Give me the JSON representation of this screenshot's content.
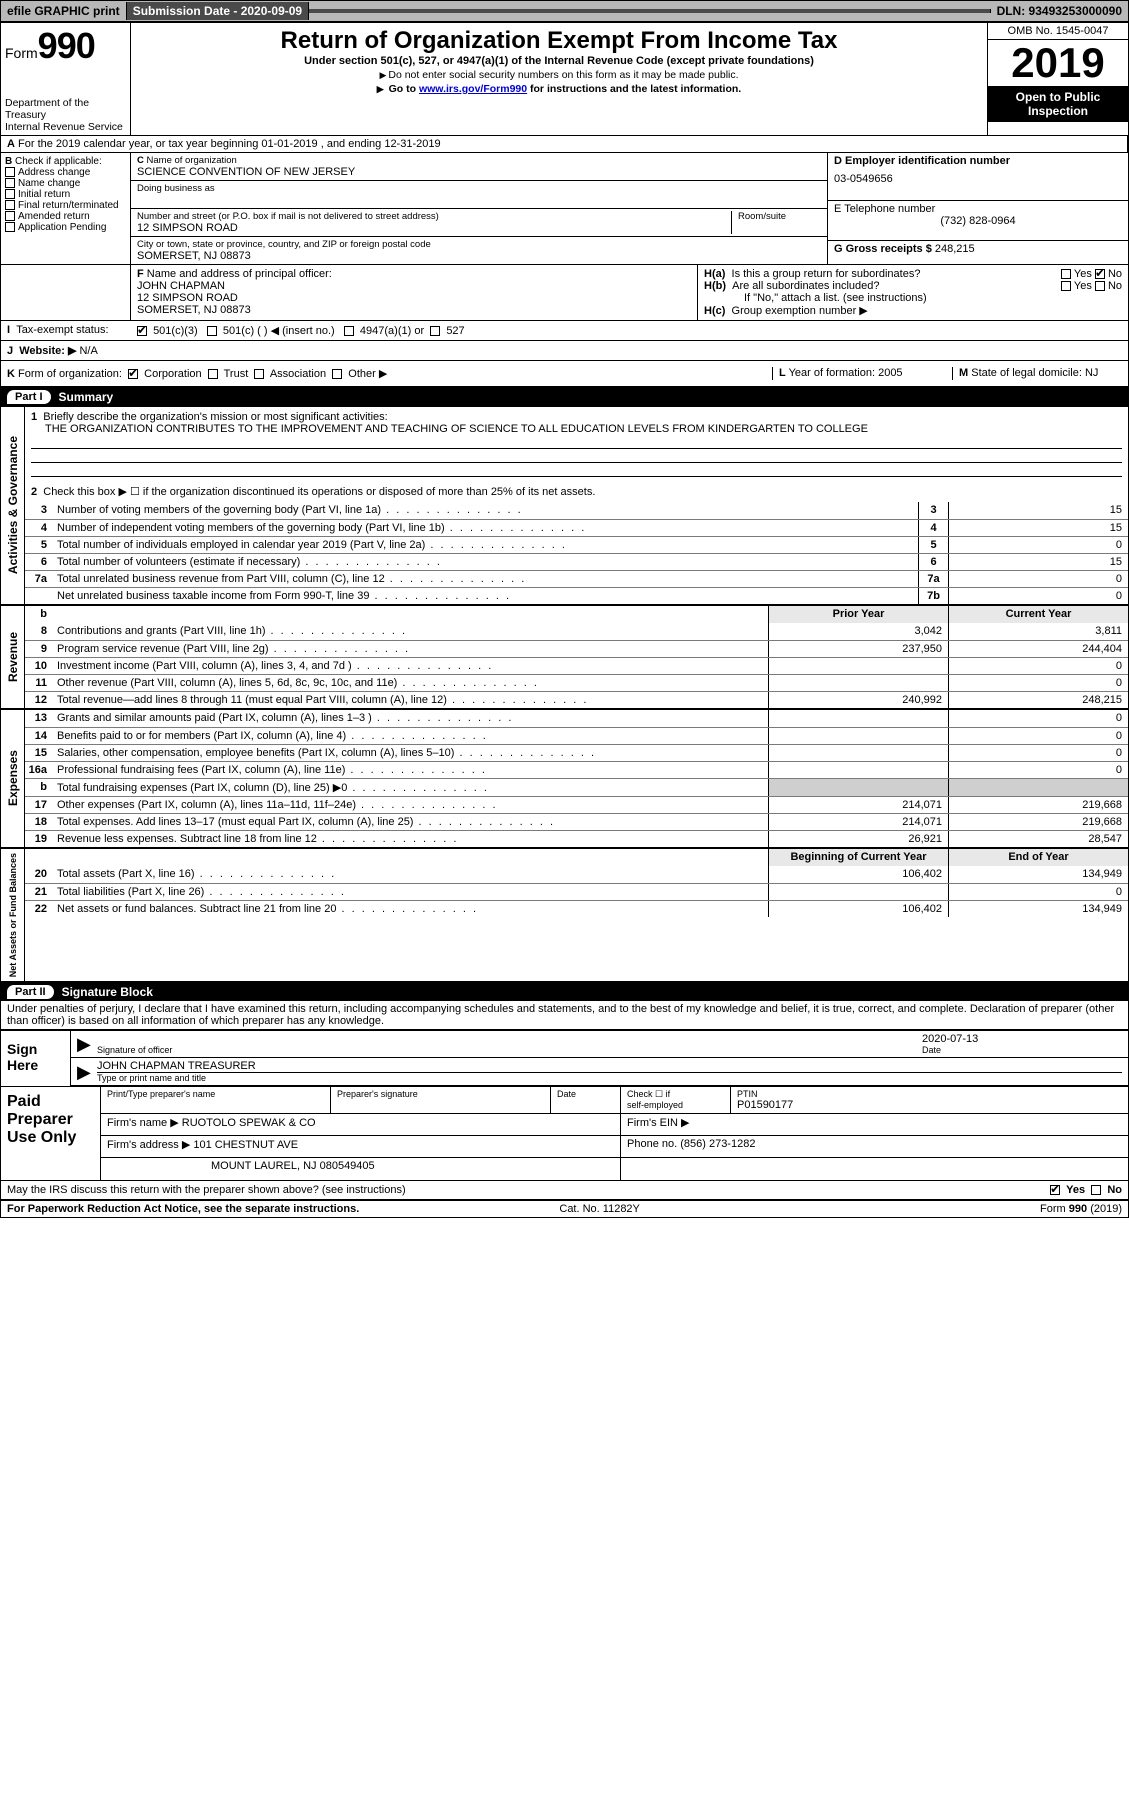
{
  "topbar": {
    "efile": "efile GRAPHIC print",
    "submission_label": "Submission Date - 2020-09-09",
    "dln": "DLN: 93493253000090"
  },
  "header": {
    "form_word": "Form",
    "form_num": "990",
    "dept1": "Department of the Treasury",
    "dept2": "Internal Revenue Service",
    "title": "Return of Organization Exempt From Income Tax",
    "subtitle": "Under section 501(c), 527, or 4947(a)(1) of the Internal Revenue Code (except private foundations)",
    "note1": "Do not enter social security numbers on this form as it may be made public.",
    "note2_pre": "Go to ",
    "note2_link": "www.irs.gov/Form990",
    "note2_post": " for instructions and the latest information.",
    "omb": "OMB No. 1545-0047",
    "year": "2019",
    "open1": "Open to Public",
    "open2": "Inspection"
  },
  "line_a": "For the 2019 calendar year, or tax year beginning 01-01-2019   , and ending 12-31-2019",
  "box_b": {
    "title": "Check if applicable:",
    "opts": [
      "Address change",
      "Name change",
      "Initial return",
      "Final return/terminated",
      "Amended return",
      "Application Pending"
    ]
  },
  "box_c": {
    "name_lbl": "Name of organization",
    "name": "SCIENCE CONVENTION OF NEW JERSEY",
    "dba_lbl": "Doing business as",
    "addr_lbl": "Number and street (or P.O. box if mail is not delivered to street address)",
    "room_lbl": "Room/suite",
    "addr": "12 SIMPSON ROAD",
    "city_lbl": "City or town, state or province, country, and ZIP or foreign postal code",
    "city": "SOMERSET, NJ  08873"
  },
  "box_d": {
    "lbl": "D Employer identification number",
    "val": "03-0549656"
  },
  "box_e": {
    "lbl": "E Telephone number",
    "val": "(732) 828-0964"
  },
  "box_g": {
    "lbl": "G Gross receipts $",
    "val": "248,215"
  },
  "box_f": {
    "lbl": "Name and address of principal officer:",
    "l1": "JOHN CHAPMAN",
    "l2": "12 SIMPSON ROAD",
    "l3": "SOMERSET, NJ  08873"
  },
  "box_h": {
    "a": "Is this a group return for subordinates?",
    "b": "Are all subordinates included?",
    "b_note": "If \"No,\" attach a list. (see instructions)",
    "c": "Group exemption number ▶"
  },
  "tax_status": {
    "lbl": "Tax-exempt status:",
    "o1": "501(c)(3)",
    "o2": "501(c) (  ) ◀ (insert no.)",
    "o3": "4947(a)(1) or",
    "o4": "527"
  },
  "website": {
    "lbl": "Website: ▶",
    "val": "N/A"
  },
  "line_k": "Form of organization:",
  "k_opts": [
    "Corporation",
    "Trust",
    "Association",
    "Other ▶"
  ],
  "box_l": {
    "lbl": "Year of formation:",
    "val": "2005"
  },
  "box_m": {
    "lbl": "State of legal domicile:",
    "val": "NJ"
  },
  "part1": {
    "pill": "Part I",
    "title": "Summary"
  },
  "summary": {
    "q1": "Briefly describe the organization's mission or most significant activities:",
    "q1v": "THE ORGANIZATION CONTRIBUTES TO THE IMPROVEMENT AND TEACHING OF SCIENCE TO ALL EDUCATION LEVELS FROM KINDERGARTEN TO COLLEGE",
    "q2": "Check this box ▶ ☐ if the organization discontinued its operations or disposed of more than 25% of its net assets.",
    "lines": [
      {
        "n": "3",
        "d": "Number of voting members of the governing body (Part VI, line 1a)",
        "b": "3",
        "v": "15"
      },
      {
        "n": "4",
        "d": "Number of independent voting members of the governing body (Part VI, line 1b)",
        "b": "4",
        "v": "15"
      },
      {
        "n": "5",
        "d": "Total number of individuals employed in calendar year 2019 (Part V, line 2a)",
        "b": "5",
        "v": "0"
      },
      {
        "n": "6",
        "d": "Total number of volunteers (estimate if necessary)",
        "b": "6",
        "v": "15"
      },
      {
        "n": "7a",
        "d": "Total unrelated business revenue from Part VIII, column (C), line 12",
        "b": "7a",
        "v": "0"
      },
      {
        "n": "",
        "d": "Net unrelated business taxable income from Form 990-T, line 39",
        "b": "7b",
        "v": "0"
      }
    ],
    "th_prior": "Prior Year",
    "th_curr": "Current Year",
    "rev": [
      {
        "n": "8",
        "d": "Contributions and grants (Part VIII, line 1h)",
        "p": "3,042",
        "c": "3,811"
      },
      {
        "n": "9",
        "d": "Program service revenue (Part VIII, line 2g)",
        "p": "237,950",
        "c": "244,404"
      },
      {
        "n": "10",
        "d": "Investment income (Part VIII, column (A), lines 3, 4, and 7d )",
        "p": "",
        "c": "0"
      },
      {
        "n": "11",
        "d": "Other revenue (Part VIII, column (A), lines 5, 6d, 8c, 9c, 10c, and 11e)",
        "p": "",
        "c": "0"
      },
      {
        "n": "12",
        "d": "Total revenue—add lines 8 through 11 (must equal Part VIII, column (A), line 12)",
        "p": "240,992",
        "c": "248,215"
      }
    ],
    "exp": [
      {
        "n": "13",
        "d": "Grants and similar amounts paid (Part IX, column (A), lines 1–3 )",
        "p": "",
        "c": "0"
      },
      {
        "n": "14",
        "d": "Benefits paid to or for members (Part IX, column (A), line 4)",
        "p": "",
        "c": "0"
      },
      {
        "n": "15",
        "d": "Salaries, other compensation, employee benefits (Part IX, column (A), lines 5–10)",
        "p": "",
        "c": "0"
      },
      {
        "n": "16a",
        "d": "Professional fundraising fees (Part IX, column (A), line 11e)",
        "p": "",
        "c": "0"
      },
      {
        "n": "b",
        "d": "Total fundraising expenses (Part IX, column (D), line 25) ▶0",
        "p": "GREY",
        "c": "GREY"
      },
      {
        "n": "17",
        "d": "Other expenses (Part IX, column (A), lines 11a–11d, 11f–24e)",
        "p": "214,071",
        "c": "219,668"
      },
      {
        "n": "18",
        "d": "Total expenses. Add lines 13–17 (must equal Part IX, column (A), line 25)",
        "p": "214,071",
        "c": "219,668"
      },
      {
        "n": "19",
        "d": "Revenue less expenses. Subtract line 18 from line 12",
        "p": "26,921",
        "c": "28,547"
      }
    ],
    "th_beg": "Beginning of Current Year",
    "th_end": "End of Year",
    "net": [
      {
        "n": "20",
        "d": "Total assets (Part X, line 16)",
        "p": "106,402",
        "c": "134,949"
      },
      {
        "n": "21",
        "d": "Total liabilities (Part X, line 26)",
        "p": "",
        "c": "0"
      },
      {
        "n": "22",
        "d": "Net assets or fund balances. Subtract line 21 from line 20",
        "p": "106,402",
        "c": "134,949"
      }
    ]
  },
  "sect_labels": {
    "gov": "Activities & Governance",
    "rev": "Revenue",
    "exp": "Expenses",
    "net": "Net Assets or Fund Balances"
  },
  "part2": {
    "pill": "Part II",
    "title": "Signature Block"
  },
  "sig_decl": "Under penalties of perjury, I declare that I have examined this return, including accompanying schedules and statements, and to the best of my knowledge and belief, it is true, correct, and complete. Declaration of preparer (other than officer) is based on all information of which preparer has any knowledge.",
  "sign": {
    "here": "Sign Here",
    "officer_lbl": "Signature of officer",
    "date_lbl": "Date",
    "date": "2020-07-13",
    "name": "JOHN CHAPMAN  TREASURER",
    "name_lbl": "Type or print name and title"
  },
  "paid": {
    "title1": "Paid",
    "title2": "Preparer",
    "title3": "Use Only",
    "h1": "Print/Type preparer's name",
    "h2": "Preparer's signature",
    "h3": "Date",
    "h4a": "Check ☐ if",
    "h4b": "self-employed",
    "h5": "PTIN",
    "ptin": "P01590177",
    "firm_lbl": "Firm's name   ▶",
    "firm": "RUOTOLO SPEWAK & CO",
    "ein_lbl": "Firm's EIN ▶",
    "addr_lbl": "Firm's address ▶",
    "addr1": "101 CHESTNUT AVE",
    "addr2": "MOUNT LAUREL, NJ  080549405",
    "phone_lbl": "Phone no.",
    "phone": "(856) 273-1282"
  },
  "discuss": "May the IRS discuss this return with the preparer shown above? (see instructions)",
  "yes": "Yes",
  "no": "No",
  "footer": {
    "l": "For Paperwork Reduction Act Notice, see the separate instructions.",
    "m": "Cat. No. 11282Y",
    "r": "Form 990 (2019)"
  }
}
